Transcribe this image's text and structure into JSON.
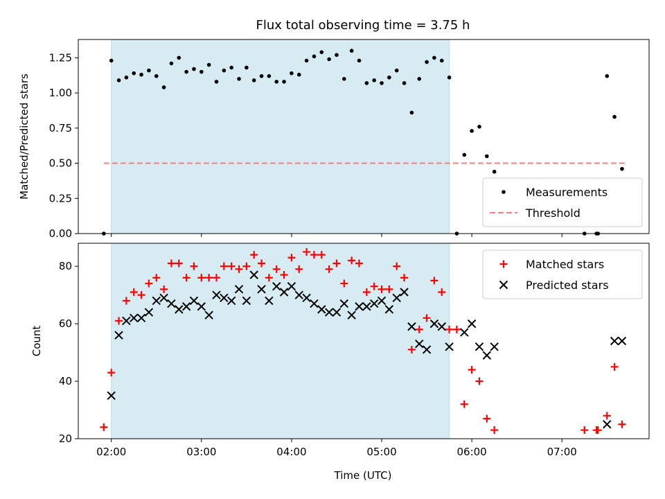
{
  "chart_data": [
    {
      "type": "scatter",
      "title": "Flux total observing time = 3.75 h",
      "xlabel": "",
      "ylabel": "Matched/Predicted stars",
      "xlim": [
        "01:38",
        "07:58"
      ],
      "ylim": [
        0,
        1.38
      ],
      "yticks": [
        "0.00",
        "0.25",
        "0.50",
        "0.75",
        "1.00",
        "1.25"
      ],
      "grid": false,
      "legend_position": "bottom-right",
      "shaded_interval": {
        "start": "02:00",
        "end": "05:45",
        "color": "#add8e6"
      },
      "threshold": {
        "name": "Threshold",
        "value": 0.5,
        "x_start": "01:55",
        "x_end": "07:42",
        "color": "#f08080"
      },
      "series": [
        {
          "name": "Measurements",
          "color": "#000000",
          "marker": "dot",
          "points": [
            [
              "01:55",
              0.0
            ],
            [
              "02:00",
              1.23
            ],
            [
              "02:05",
              1.09
            ],
            [
              "02:10",
              1.11
            ],
            [
              "02:15",
              1.14
            ],
            [
              "02:20",
              1.13
            ],
            [
              "02:25",
              1.16
            ],
            [
              "02:30",
              1.12
            ],
            [
              "02:35",
              1.04
            ],
            [
              "02:40",
              1.21
            ],
            [
              "02:45",
              1.25
            ],
            [
              "02:50",
              1.15
            ],
            [
              "02:55",
              1.17
            ],
            [
              "03:00",
              1.15
            ],
            [
              "03:05",
              1.2
            ],
            [
              "03:10",
              1.08
            ],
            [
              "03:15",
              1.16
            ],
            [
              "03:20",
              1.18
            ],
            [
              "03:25",
              1.1
            ],
            [
              "03:30",
              1.18
            ],
            [
              "03:35",
              1.09
            ],
            [
              "03:40",
              1.12
            ],
            [
              "03:45",
              1.12
            ],
            [
              "03:50",
              1.08
            ],
            [
              "03:55",
              1.08
            ],
            [
              "04:00",
              1.14
            ],
            [
              "04:05",
              1.13
            ],
            [
              "04:10",
              1.23
            ],
            [
              "04:15",
              1.26
            ],
            [
              "04:20",
              1.29
            ],
            [
              "04:25",
              1.24
            ],
            [
              "04:30",
              1.27
            ],
            [
              "04:35",
              1.1
            ],
            [
              "04:40",
              1.3
            ],
            [
              "04:45",
              1.23
            ],
            [
              "04:50",
              1.07
            ],
            [
              "04:55",
              1.09
            ],
            [
              "05:00",
              1.07
            ],
            [
              "05:05",
              1.11
            ],
            [
              "05:10",
              1.16
            ],
            [
              "05:15",
              1.07
            ],
            [
              "05:20",
              0.86
            ],
            [
              "05:25",
              1.1
            ],
            [
              "05:30",
              1.22
            ],
            [
              "05:35",
              1.25
            ],
            [
              "05:40",
              1.23
            ],
            [
              "05:45",
              1.11
            ],
            [
              "05:50",
              0.0
            ],
            [
              "05:55",
              0.56
            ],
            [
              "06:00",
              0.73
            ],
            [
              "06:05",
              0.76
            ],
            [
              "06:10",
              0.55
            ],
            [
              "06:15",
              0.44
            ],
            [
              "07:15",
              0.0
            ],
            [
              "07:23",
              0.0
            ],
            [
              "07:24",
              0.0
            ],
            [
              "07:30",
              1.12
            ],
            [
              "07:35",
              0.83
            ],
            [
              "07:40",
              0.46
            ]
          ]
        }
      ]
    },
    {
      "type": "scatter",
      "title": "",
      "xlabel": "Time (UTC)",
      "ylabel": "Count",
      "xlim": [
        "01:38",
        "07:58"
      ],
      "ylim": [
        20,
        88
      ],
      "yticks": [
        "20",
        "40",
        "60",
        "80"
      ],
      "xticks": [
        "02:00",
        "03:00",
        "04:00",
        "05:00",
        "06:00",
        "07:00"
      ],
      "grid": false,
      "legend_position": "top-right",
      "shaded_interval": {
        "start": "02:00",
        "end": "05:45",
        "color": "#add8e6"
      },
      "series": [
        {
          "name": "Matched stars",
          "color": "#ff0000",
          "marker": "plus",
          "points": [
            [
              "01:55",
              24
            ],
            [
              "02:00",
              43
            ],
            [
              "02:05",
              61
            ],
            [
              "02:10",
              68
            ],
            [
              "02:15",
              71
            ],
            [
              "02:20",
              70
            ],
            [
              "02:25",
              74
            ],
            [
              "02:30",
              76
            ],
            [
              "02:35",
              72
            ],
            [
              "02:40",
              81
            ],
            [
              "02:45",
              81
            ],
            [
              "02:50",
              76
            ],
            [
              "02:55",
              80
            ],
            [
              "03:00",
              76
            ],
            [
              "03:05",
              76
            ],
            [
              "03:10",
              76
            ],
            [
              "03:15",
              80
            ],
            [
              "03:20",
              80
            ],
            [
              "03:25",
              79
            ],
            [
              "03:30",
              80
            ],
            [
              "03:35",
              84
            ],
            [
              "03:40",
              81
            ],
            [
              "03:45",
              76
            ],
            [
              "03:50",
              79
            ],
            [
              "03:55",
              77
            ],
            [
              "04:00",
              83
            ],
            [
              "04:05",
              79
            ],
            [
              "04:10",
              85
            ],
            [
              "04:15",
              84
            ],
            [
              "04:20",
              84
            ],
            [
              "04:25",
              79
            ],
            [
              "04:30",
              81
            ],
            [
              "04:35",
              74
            ],
            [
              "04:40",
              82
            ],
            [
              "04:45",
              81
            ],
            [
              "04:50",
              71
            ],
            [
              "04:55",
              73
            ],
            [
              "05:00",
              72
            ],
            [
              "05:05",
              72
            ],
            [
              "05:10",
              80
            ],
            [
              "05:15",
              76
            ],
            [
              "05:20",
              51
            ],
            [
              "05:25",
              58
            ],
            [
              "05:30",
              62
            ],
            [
              "05:35",
              75
            ],
            [
              "05:40",
              71
            ],
            [
              "05:45",
              58
            ],
            [
              "05:50",
              58
            ],
            [
              "05:55",
              32
            ],
            [
              "06:00",
              44
            ],
            [
              "06:05",
              40
            ],
            [
              "06:10",
              27
            ],
            [
              "06:15",
              23
            ],
            [
              "07:15",
              23
            ],
            [
              "07:23",
              23
            ],
            [
              "07:24",
              23
            ],
            [
              "07:30",
              28
            ],
            [
              "07:35",
              45
            ],
            [
              "07:40",
              25
            ]
          ]
        },
        {
          "name": "Predicted stars",
          "color": "#000000",
          "marker": "x",
          "points": [
            [
              "02:00",
              35
            ],
            [
              "02:05",
              56
            ],
            [
              "02:10",
              61
            ],
            [
              "02:15",
              62
            ],
            [
              "02:20",
              62
            ],
            [
              "02:25",
              64
            ],
            [
              "02:30",
              68
            ],
            [
              "02:35",
              69
            ],
            [
              "02:40",
              67
            ],
            [
              "02:45",
              65
            ],
            [
              "02:50",
              66
            ],
            [
              "02:55",
              68
            ],
            [
              "03:00",
              66
            ],
            [
              "03:05",
              63
            ],
            [
              "03:10",
              70
            ],
            [
              "03:15",
              69
            ],
            [
              "03:20",
              68
            ],
            [
              "03:25",
              72
            ],
            [
              "03:30",
              68
            ],
            [
              "03:35",
              77
            ],
            [
              "03:40",
              72
            ],
            [
              "03:45",
              68
            ],
            [
              "03:50",
              73
            ],
            [
              "03:55",
              71
            ],
            [
              "04:00",
              73
            ],
            [
              "04:05",
              70
            ],
            [
              "04:10",
              69
            ],
            [
              "04:15",
              67
            ],
            [
              "04:20",
              65
            ],
            [
              "04:25",
              64
            ],
            [
              "04:30",
              64
            ],
            [
              "04:35",
              67
            ],
            [
              "04:40",
              63
            ],
            [
              "04:45",
              66
            ],
            [
              "04:50",
              66
            ],
            [
              "04:55",
              67
            ],
            [
              "05:00",
              68
            ],
            [
              "05:05",
              65
            ],
            [
              "05:10",
              69
            ],
            [
              "05:15",
              71
            ],
            [
              "05:20",
              59
            ],
            [
              "05:25",
              53
            ],
            [
              "05:30",
              51
            ],
            [
              "05:35",
              60
            ],
            [
              "05:40",
              59
            ],
            [
              "05:45",
              52
            ],
            [
              "05:55",
              57
            ],
            [
              "06:00",
              60
            ],
            [
              "06:05",
              52
            ],
            [
              "06:10",
              49
            ],
            [
              "06:15",
              52
            ],
            [
              "07:30",
              25
            ],
            [
              "07:35",
              54
            ],
            [
              "07:40",
              54
            ]
          ]
        }
      ]
    }
  ]
}
